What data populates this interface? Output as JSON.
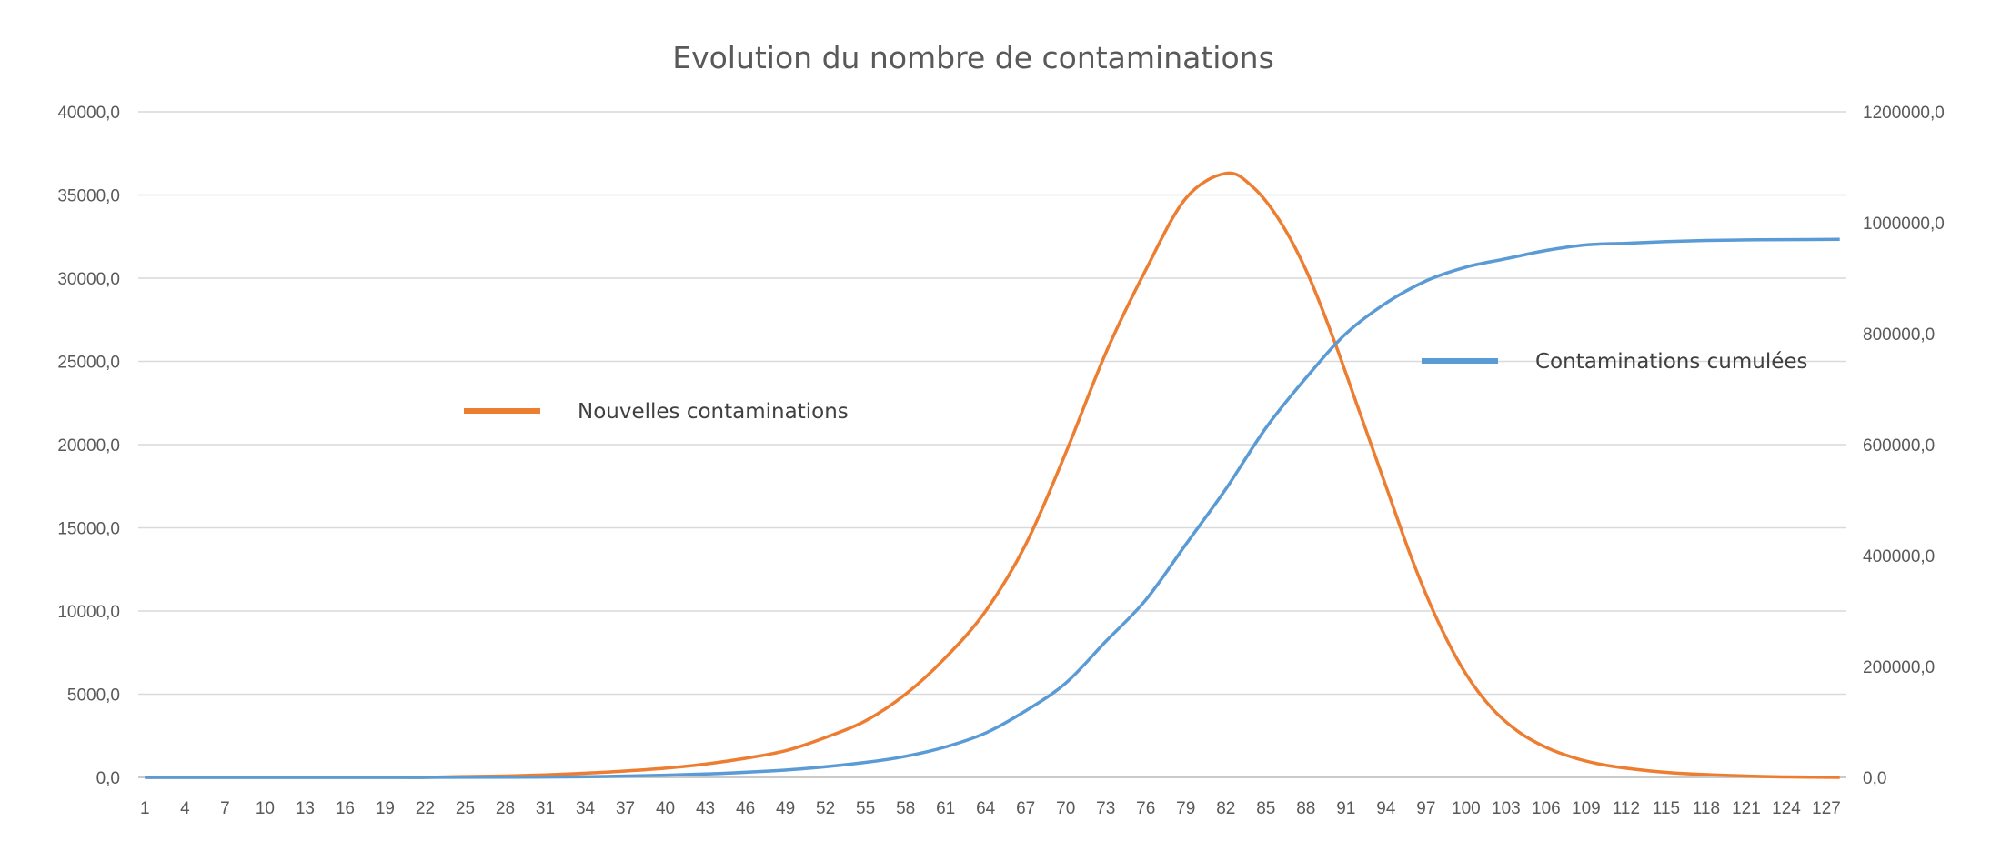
{
  "chart_data": {
    "type": "line",
    "title": "Evolution du nombre de contaminations",
    "xlabel": "",
    "ylabel": "",
    "y2label": "",
    "x_min": 1,
    "x_max": 128,
    "x_tick_labels": [
      "1",
      "4",
      "7",
      "10",
      "13",
      "16",
      "19",
      "22",
      "25",
      "28",
      "31",
      "34",
      "37",
      "40",
      "43",
      "46",
      "49",
      "52",
      "55",
      "58",
      "61",
      "64",
      "67",
      "70",
      "73",
      "76",
      "79",
      "82",
      "85",
      "88",
      "91",
      "94",
      "97",
      "100",
      "103",
      "106",
      "109",
      "112",
      "115",
      "118",
      "121",
      "124",
      "127"
    ],
    "ylim": [
      0,
      40000
    ],
    "y_tick_labels": [
      "0,0",
      "5000,0",
      "10000,0",
      "15000,0",
      "20000,0",
      "25000,0",
      "30000,0",
      "35000,0",
      "40000,0"
    ],
    "y2lim": [
      0,
      1200000
    ],
    "y2_tick_labels": [
      "0,0",
      "200000,0",
      "400000,0",
      "600000,0",
      "800000,0",
      "1000000,0",
      "1200000,0"
    ],
    "grid": true,
    "series": [
      {
        "name": "Nouvelles contaminations",
        "axis": "left",
        "color": "#ED7D31",
        "points": [
          [
            1,
            0
          ],
          [
            10,
            0
          ],
          [
            20,
            0
          ],
          [
            22,
            0
          ],
          [
            25,
            50
          ],
          [
            28,
            80
          ],
          [
            31,
            150
          ],
          [
            34,
            250
          ],
          [
            37,
            380
          ],
          [
            40,
            550
          ],
          [
            43,
            800
          ],
          [
            46,
            1150
          ],
          [
            49,
            1600
          ],
          [
            52,
            2400
          ],
          [
            55,
            3400
          ],
          [
            58,
            5000
          ],
          [
            61,
            7200
          ],
          [
            64,
            10000
          ],
          [
            67,
            14000
          ],
          [
            70,
            19500
          ],
          [
            73,
            25500
          ],
          [
            76,
            30500
          ],
          [
            79,
            34800
          ],
          [
            82,
            36300
          ],
          [
            84,
            35500
          ],
          [
            86,
            33500
          ],
          [
            88,
            30500
          ],
          [
            90,
            26500
          ],
          [
            92,
            22000
          ],
          [
            94,
            17500
          ],
          [
            96,
            13000
          ],
          [
            98,
            9200
          ],
          [
            100,
            6200
          ],
          [
            102,
            4100
          ],
          [
            104,
            2700
          ],
          [
            106,
            1800
          ],
          [
            108,
            1200
          ],
          [
            110,
            800
          ],
          [
            112,
            550
          ],
          [
            115,
            300
          ],
          [
            118,
            170
          ],
          [
            121,
            80
          ],
          [
            124,
            30
          ],
          [
            128,
            0
          ]
        ],
        "legend_label": "Nouvelles contaminations",
        "legend_position": "center-left"
      },
      {
        "name": "Contaminations cumulées",
        "axis": "right",
        "color": "#5B9BD5",
        "points": [
          [
            1,
            0
          ],
          [
            20,
            0
          ],
          [
            30,
            500
          ],
          [
            35,
            1500
          ],
          [
            40,
            4000
          ],
          [
            45,
            8000
          ],
          [
            50,
            15000
          ],
          [
            55,
            27000
          ],
          [
            58,
            38000
          ],
          [
            61,
            55000
          ],
          [
            64,
            80000
          ],
          [
            67,
            120000
          ],
          [
            70,
            170000
          ],
          [
            73,
            245000
          ],
          [
            76,
            320000
          ],
          [
            79,
            420000
          ],
          [
            82,
            520000
          ],
          [
            85,
            630000
          ],
          [
            88,
            720000
          ],
          [
            91,
            800000
          ],
          [
            94,
            855000
          ],
          [
            97,
            895000
          ],
          [
            100,
            920000
          ],
          [
            103,
            935000
          ],
          [
            106,
            950000
          ],
          [
            109,
            960000
          ],
          [
            112,
            963000
          ],
          [
            115,
            966000
          ],
          [
            118,
            968000
          ],
          [
            121,
            969000
          ],
          [
            124,
            969500
          ],
          [
            128,
            970000
          ]
        ],
        "legend_label": "Contaminations cumulées",
        "legend_position": "top-right"
      }
    ]
  }
}
